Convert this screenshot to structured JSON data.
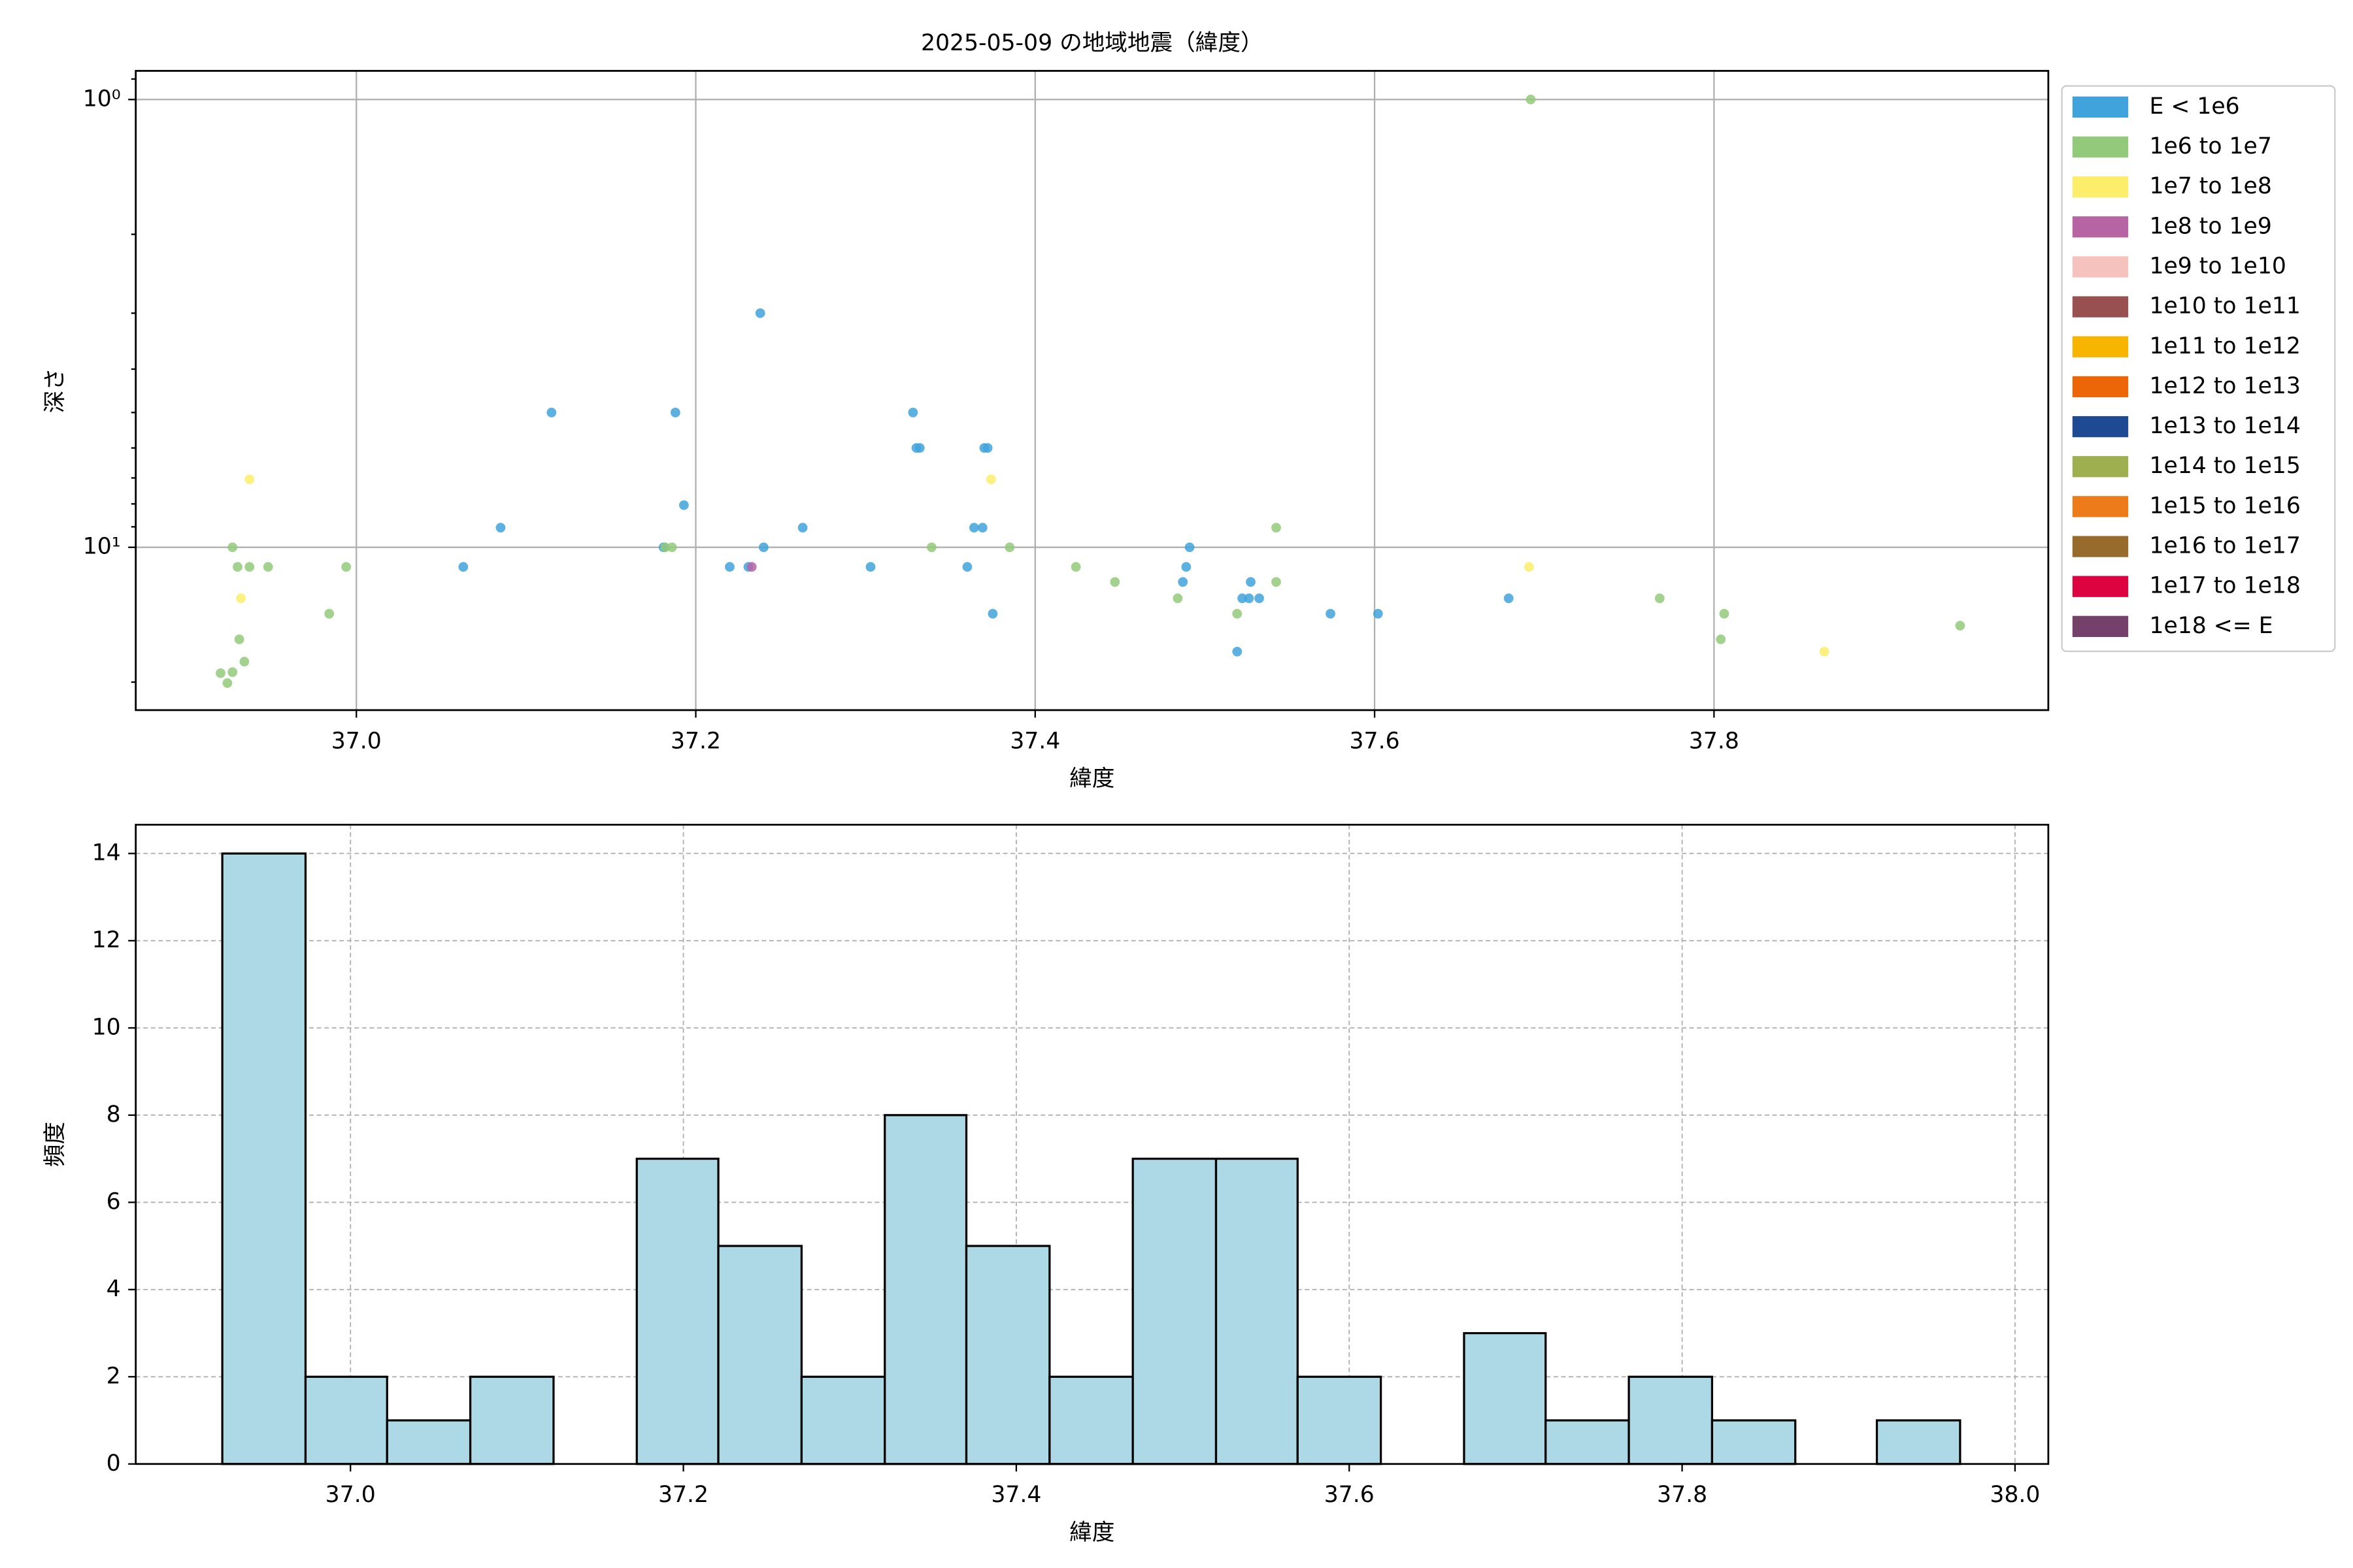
{
  "chart_data": [
    {
      "type": "scatter",
      "title": "2025-05-09 の地域地震（緯度）",
      "xlabel": "緯度",
      "ylabel": "深さ",
      "xlim": [
        36.87,
        37.997
      ],
      "xticks": [
        {
          "value": 37.0,
          "label": "37.0"
        },
        37.2,
        37.4,
        37.6,
        37.8
      ],
      "ylim": [
        23.1,
        0.863
      ],
      "yscale": "log",
      "yticks": [
        {
          "value": 1,
          "label": "10⁰"
        },
        {
          "value": 10,
          "label": "10¹"
        }
      ],
      "grid": true,
      "legend": "outside-right",
      "series": [
        {
          "name": "E < 1e6",
          "color": "#41a3dc",
          "x": [
            37.063,
            37.085,
            37.115,
            37.188,
            37.193,
            37.181,
            37.22,
            37.238,
            37.24,
            37.263,
            37.303,
            37.328,
            37.33,
            37.332,
            37.36,
            37.364,
            37.369,
            37.37,
            37.372,
            37.375,
            37.491,
            37.489,
            37.487,
            37.527,
            37.522,
            37.526,
            37.532,
            37.519,
            37.574,
            37.602,
            37.679,
            37.231
          ],
          "values": [
            11.06,
            9.04,
            5.0,
            5.0,
            8.05,
            10,
            11.06,
            3.0,
            10,
            9.04,
            11.06,
            5.0,
            6.0,
            6.0,
            11.06,
            9.04,
            9.04,
            6.0,
            6.0,
            14.07,
            10,
            11.06,
            11.95,
            11.95,
            13.0,
            13.0,
            13.0,
            17.1,
            14.07,
            14.07,
            13.0,
            11.06
          ]
        },
        {
          "name": "1e6 to 1e7",
          "color": "#93c97a",
          "x": [
            36.927,
            36.93,
            36.937,
            36.948,
            36.984,
            36.994,
            36.931,
            36.934,
            36.927,
            36.92,
            36.924,
            37.182,
            37.186,
            37.339,
            37.385,
            37.424,
            37.447,
            37.484,
            37.519,
            37.542,
            37.542,
            37.692,
            37.768,
            37.806,
            37.804,
            37.945
          ],
          "values": [
            10,
            11.06,
            11.06,
            11.06,
            14.07,
            11.06,
            16.05,
            18.0,
            19.0,
            19.1,
            20.1,
            10,
            10,
            10,
            10,
            11.06,
            11.95,
            13.0,
            14.07,
            9.04,
            11.95,
            1,
            13.0,
            14.07,
            16.05,
            14.96
          ]
        },
        {
          "name": "1e7 to 1e8",
          "color": "#fcee6a",
          "x": [
            36.937,
            37.374,
            37.691,
            37.865,
            36.932
          ],
          "values": [
            7.05,
            7.05,
            11.06,
            17.1,
            13.0
          ]
        },
        {
          "name": "1e8 to 1e9",
          "color": "#b764a5",
          "x": [
            37.233
          ],
          "values": [
            11.06
          ]
        },
        {
          "name": "1e9 to 1e10",
          "color": "#f5c2bd",
          "x": [],
          "values": []
        },
        {
          "name": "1e10 to 1e11",
          "color": "#985150",
          "x": [],
          "values": []
        },
        {
          "name": "1e11 to 1e12",
          "color": "#f8b500",
          "x": [],
          "values": []
        },
        {
          "name": "1e12 to 1e13",
          "color": "#ec6608",
          "x": [],
          "values": []
        },
        {
          "name": "1e13 to 1e14",
          "color": "#1d4a93",
          "x": [],
          "values": []
        },
        {
          "name": "1e14 to 1e15",
          "color": "#9daf4f",
          "x": [],
          "values": []
        },
        {
          "name": "1e15 to 1e16",
          "color": "#ee7b1a",
          "x": [],
          "values": []
        },
        {
          "name": "1e16 to 1e17",
          "color": "#976b2c",
          "x": [],
          "values": []
        },
        {
          "name": "1e17 to 1e18",
          "color": "#dd0341",
          "x": [],
          "values": []
        },
        {
          "name": "1e18 <= E",
          "color": "#74416a",
          "x": [],
          "values": []
        }
      ]
    },
    {
      "type": "histogram",
      "xlabel": "緯度",
      "ylabel": "頻度",
      "color": "#add8e6",
      "edgecolor": "#000000",
      "bins": [
        36.923,
        36.973,
        37.022,
        37.072,
        37.122,
        37.172,
        37.221,
        37.271,
        37.321,
        37.37,
        37.42,
        37.47,
        37.52,
        37.569,
        37.619,
        37.669,
        37.718,
        37.768,
        37.818,
        37.868,
        37.917,
        37.967
      ],
      "values": [
        14,
        2,
        1,
        2,
        0,
        7,
        5,
        2,
        8,
        5,
        2,
        7,
        7,
        2,
        0,
        3,
        1,
        2,
        1,
        0,
        1
      ],
      "xlim": [
        36.871,
        38.02
      ],
      "xticks": [
        {
          "value": 37.0,
          "label": "37.0"
        },
        37.2,
        37.4,
        37.6,
        37.8,
        {
          "value": 38.0,
          "label": "38.0"
        }
      ],
      "ylim": [
        0,
        14.66
      ],
      "yticks": [
        0,
        2,
        4,
        6,
        8,
        10,
        12,
        14
      ],
      "grid": "dashed"
    }
  ]
}
